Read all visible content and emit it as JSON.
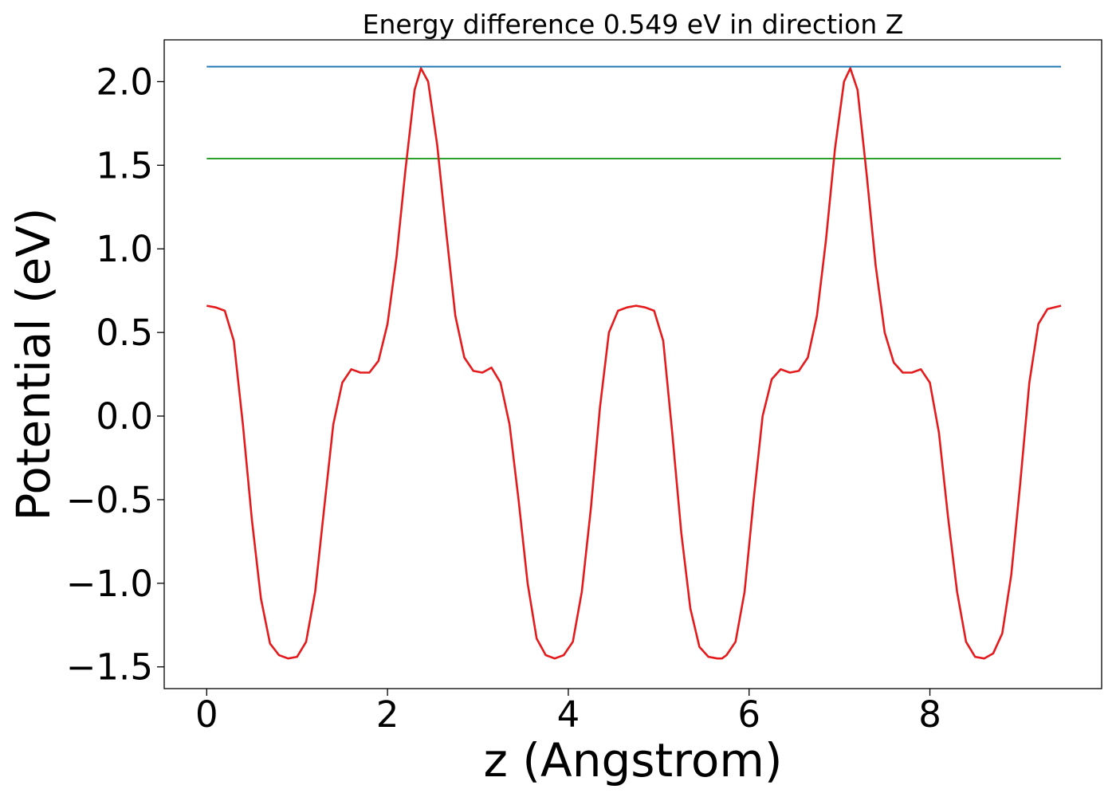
{
  "chart_data": {
    "type": "line",
    "title": "Energy difference 0.549 eV in direction Z",
    "xlabel": "z (Angstrom)",
    "ylabel": "Potential (eV)",
    "xlim": [
      -0.47,
      9.9
    ],
    "ylim": [
      -1.63,
      2.25
    ],
    "xticks": [
      0,
      2,
      4,
      6,
      8
    ],
    "xtick_labels": [
      "0",
      "2",
      "4",
      "6",
      "8"
    ],
    "yticks": [
      -1.5,
      -1.0,
      -0.5,
      0.0,
      0.5,
      1.0,
      1.5,
      2.0
    ],
    "ytick_labels": [
      "−1.5",
      "−1.0",
      "−0.5",
      "0.0",
      "0.5",
      "1.0",
      "1.5",
      "2.0"
    ],
    "grid": false,
    "series": [
      {
        "color": "#1f77b4",
        "x": [
          0,
          9.45
        ],
        "y": [
          2.09,
          2.09
        ]
      },
      {
        "color": "#2ca02c",
        "x": [
          0,
          9.45
        ],
        "y": [
          1.54,
          1.54
        ]
      },
      {
        "color": "#e41a1c",
        "x": [
          0.0,
          0.1,
          0.2,
          0.3,
          0.4,
          0.5,
          0.6,
          0.7,
          0.8,
          0.9,
          1.0,
          1.1,
          1.2,
          1.3,
          1.4,
          1.5,
          1.6,
          1.7,
          1.8,
          1.9,
          2.0,
          2.1,
          2.2,
          2.3,
          2.37,
          2.45,
          2.55,
          2.65,
          2.75,
          2.85,
          2.95,
          3.05,
          3.15,
          3.25,
          3.35,
          3.45,
          3.55,
          3.65,
          3.75,
          3.85,
          3.95,
          4.05,
          4.15,
          4.25,
          4.35,
          4.45,
          4.55,
          4.65,
          4.75,
          4.85,
          4.95,
          5.05,
          5.15,
          5.25,
          5.35,
          5.45,
          5.55,
          5.65,
          5.7,
          5.75,
          5.85,
          5.95,
          6.05,
          6.15,
          6.25,
          6.35,
          6.45,
          6.55,
          6.65,
          6.75,
          6.85,
          6.95,
          7.05,
          7.12,
          7.2,
          7.3,
          7.4,
          7.5,
          7.6,
          7.7,
          7.8,
          7.9,
          8.0,
          8.1,
          8.2,
          8.3,
          8.4,
          8.5,
          8.6,
          8.7,
          8.8,
          8.9,
          9.0,
          9.1,
          9.2,
          9.3,
          9.45
        ],
        "y": [
          0.66,
          0.65,
          0.63,
          0.45,
          -0.05,
          -0.62,
          -1.09,
          -1.36,
          -1.43,
          -1.45,
          -1.44,
          -1.35,
          -1.05,
          -0.55,
          -0.05,
          0.2,
          0.28,
          0.26,
          0.26,
          0.33,
          0.55,
          0.95,
          1.48,
          1.95,
          2.08,
          2.0,
          1.62,
          1.1,
          0.6,
          0.35,
          0.27,
          0.26,
          0.29,
          0.2,
          -0.05,
          -0.5,
          -1.0,
          -1.33,
          -1.43,
          -1.45,
          -1.43,
          -1.35,
          -1.05,
          -0.55,
          0.05,
          0.5,
          0.63,
          0.65,
          0.66,
          0.65,
          0.63,
          0.45,
          -0.1,
          -0.7,
          -1.15,
          -1.38,
          -1.44,
          -1.45,
          -1.45,
          -1.43,
          -1.35,
          -1.05,
          -0.5,
          0.0,
          0.22,
          0.28,
          0.26,
          0.27,
          0.35,
          0.6,
          1.05,
          1.6,
          2.0,
          2.08,
          1.95,
          1.45,
          0.9,
          0.5,
          0.32,
          0.26,
          0.26,
          0.28,
          0.2,
          -0.1,
          -0.6,
          -1.05,
          -1.35,
          -1.44,
          -1.45,
          -1.42,
          -1.3,
          -0.95,
          -0.4,
          0.2,
          0.55,
          0.64,
          0.66
        ]
      }
    ]
  }
}
